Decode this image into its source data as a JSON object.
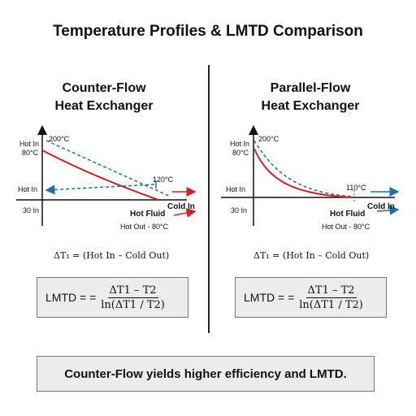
{
  "title": "Temperature Profiles & LMTD Comparison",
  "left": {
    "heading_line1": "Counter-Flow",
    "heading_line2": "Heat Exchanger",
    "labels": {
      "hot_in_top": "Hot In",
      "temp_80": "80°C",
      "temp_200": "200°C",
      "temp_120": "120°C",
      "hot_in_mid": "Hot In",
      "cold_in": "Cold In",
      "thirty_in": "30 In",
      "hot_fluid": "Hot Fluid",
      "hot_out": "Hot Out - 80°C"
    },
    "delta_t": "ΔT₁ = (Hot In – Cold Out)",
    "lmtd_label": "LMTD = =",
    "lmtd_numerator": "ΔT1 – T2",
    "lmtd_denominator": "ln(ΔT1 /  T2)"
  },
  "right": {
    "heading_line1": "Parallel-Flow",
    "heading_line2": "Heat Exchanger",
    "labels": {
      "hot_in_top": "Hot In",
      "temp_80": "80°C",
      "temp_200": "200°C",
      "temp_110": "110°C",
      "hot_in_mid": "Hot In",
      "cold_in": "Cold In",
      "thirty_in": "30 In",
      "hot_fluid": "Hot Fluid",
      "hot_out": "Hot Out - 80°C"
    },
    "delta_t": "ΔT₁ = (Hot In – Cold Out)",
    "lmtd_label": "LMTD = =",
    "lmtd_numerator": "ΔT1 – T2",
    "lmtd_denominator": "ln(ΔT1 / T2)"
  },
  "conclusion": "Counter-Flow yields higher efficiency and LMTD.",
  "colors": {
    "hot": "#cc2222",
    "cold": "#1f6fa8",
    "axis": "#111111"
  }
}
